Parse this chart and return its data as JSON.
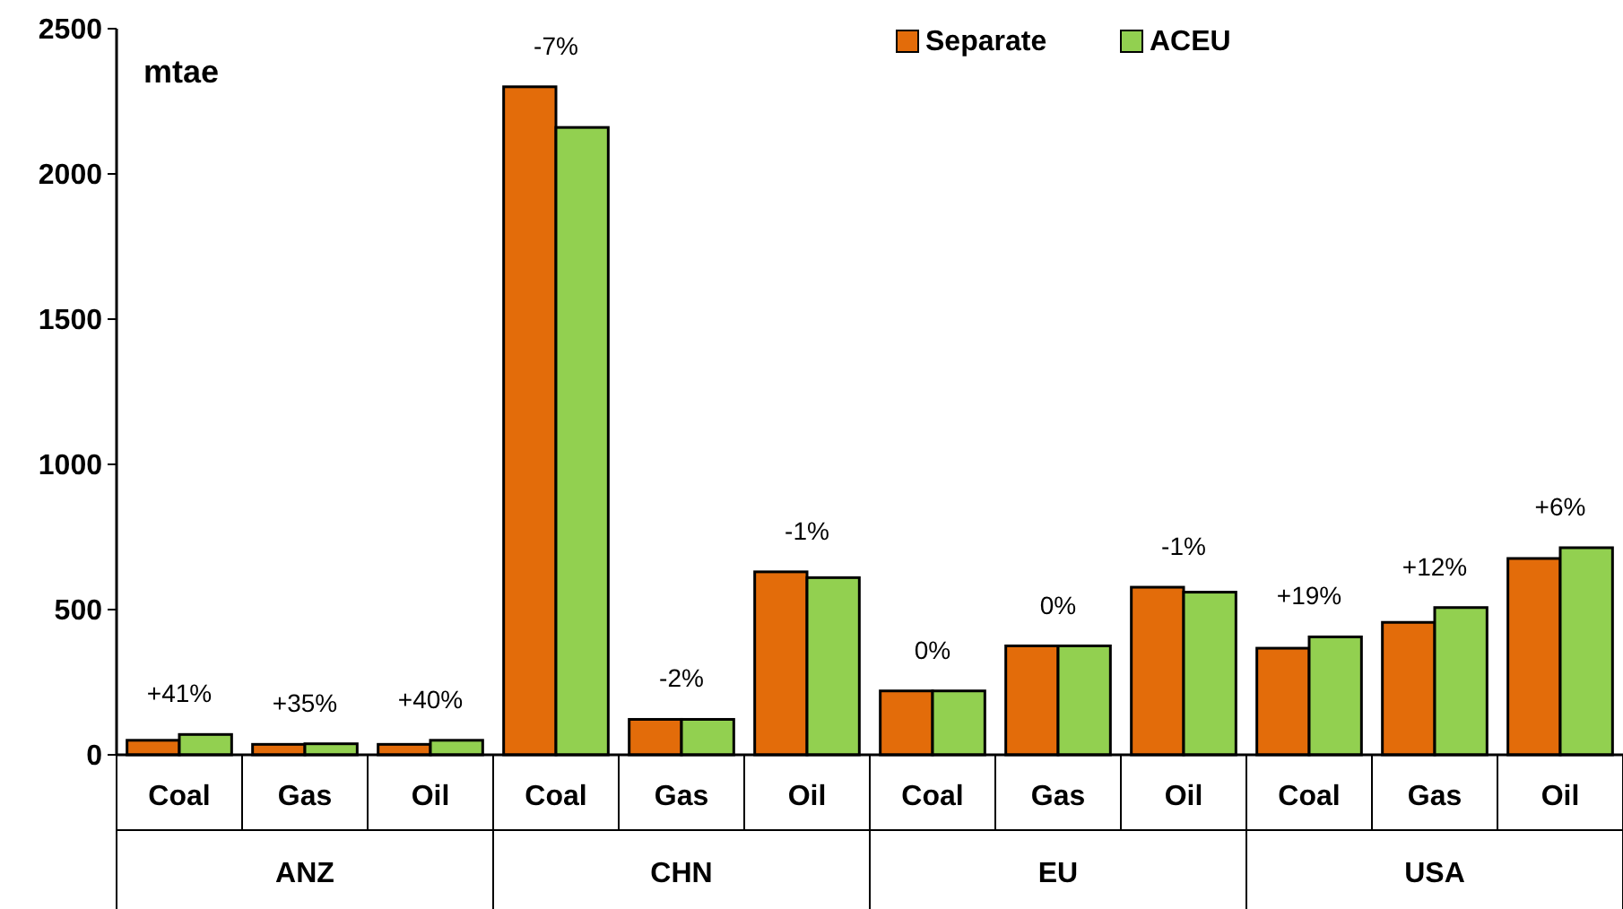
{
  "chart_data": {
    "type": "bar",
    "ylabel": "mtae",
    "categories": [
      "Coal",
      "Gas",
      "Oil",
      "Coal",
      "Gas",
      "Oil",
      "Coal",
      "Gas",
      "Oil",
      "Coal",
      "Gas",
      "Oil"
    ],
    "series": [
      {
        "name": "Separate",
        "color": "#e36c0a",
        "values": [
          50,
          36,
          36,
          2300,
          122,
          630,
          220,
          375,
          577,
          367,
          456,
          676
        ]
      },
      {
        "name": "ACEU",
        "color": "#92d050",
        "values": [
          70,
          38,
          50,
          2160,
          122,
          610,
          220,
          375,
          560,
          406,
          507,
          713
        ]
      }
    ],
    "annotations": [
      "ANZ",
      "CHN",
      "EU",
      "USA",
      {
        "text": "+41%",
        "y": 70
      },
      {
        "text": "+35%",
        "y": 38
      },
      {
        "text": "+40%",
        "y": 50
      },
      {
        "text": "-7%",
        "y": 2300
      },
      {
        "text": "-2%",
        "y": 122
      },
      {
        "text": "-1%",
        "y": 630
      },
      {
        "text": "0%",
        "y": 220
      },
      {
        "text": "0%",
        "y": 375
      },
      {
        "text": "-1%",
        "y": 577
      },
      {
        "text": "+19%",
        "y": 406
      },
      {
        "text": "+12%",
        "y": 507
      },
      {
        "text": "+6%",
        "y": 713
      }
    ],
    "ylim": [
      0,
      2500
    ],
    "yticks": [
      0,
      500,
      1000,
      1500,
      2000,
      2500
    ],
    "grid": false,
    "legend": "top"
  }
}
